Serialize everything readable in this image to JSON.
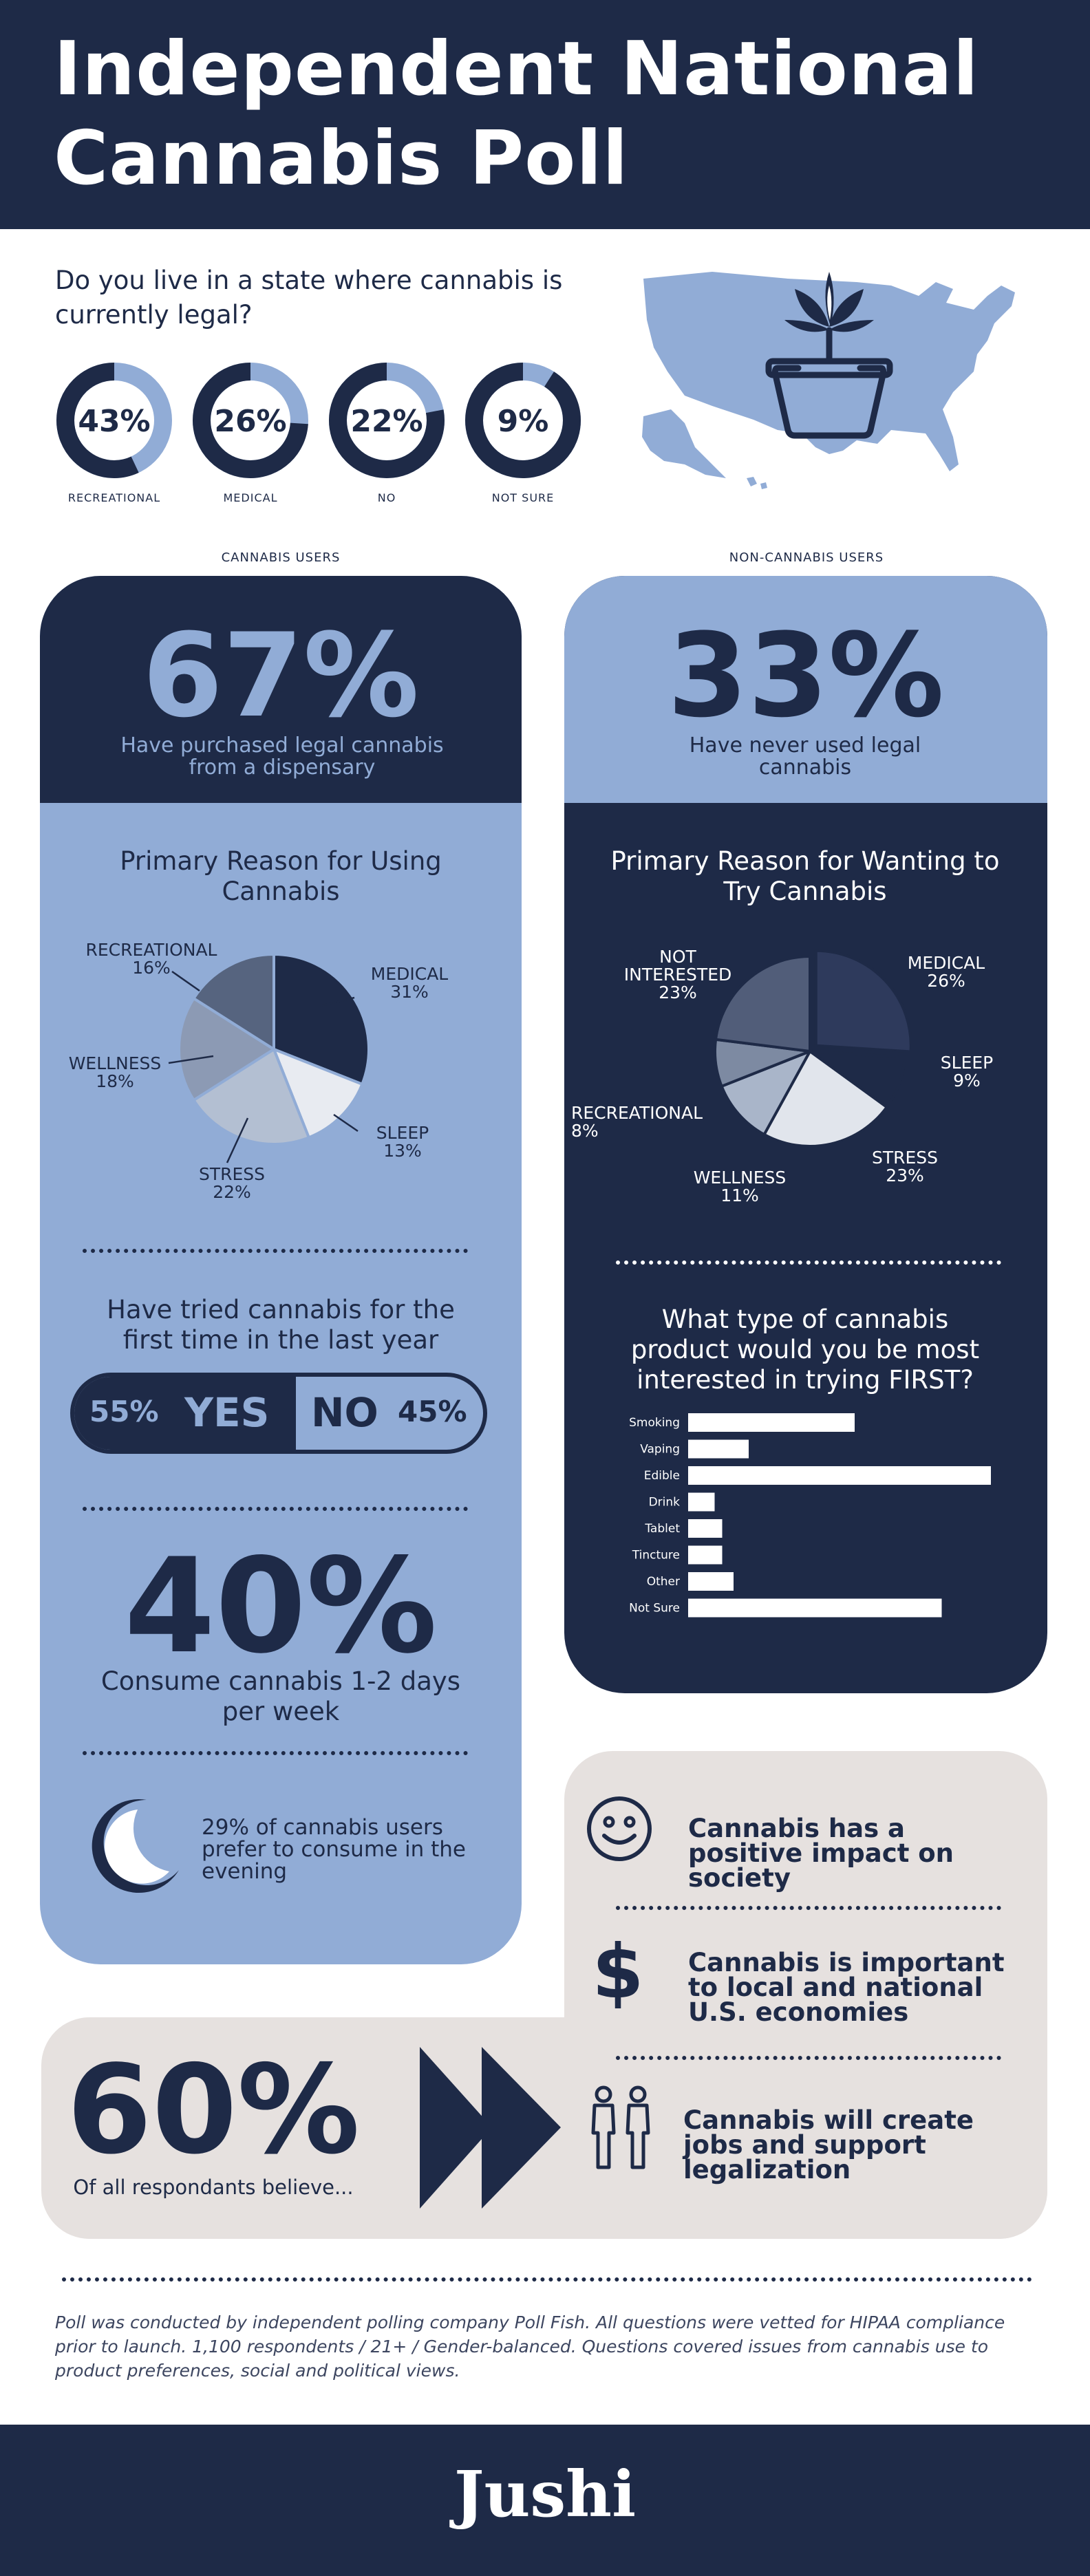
{
  "title": "Independent National Cannabis Poll",
  "question1": "Do you live in a state where cannabis is currently legal?",
  "legal_status": [
    {
      "pct": "43%",
      "label": "RECREATIONAL",
      "value": 43
    },
    {
      "pct": "26%",
      "label": "MEDICAL",
      "value": 26
    },
    {
      "pct": "22%",
      "label": "NO",
      "value": 22
    },
    {
      "pct": "9%",
      "label": "NOT SURE",
      "value": 9
    }
  ],
  "users": {
    "column_label": "CANNABIS USERS",
    "big_pct": "67%",
    "big_text": "Have purchased legal cannabis from a dispensary",
    "reason_title": "Primary Reason for Using Cannabis",
    "reasons": [
      {
        "name": "MEDICAL",
        "pct": "31%"
      },
      {
        "name": "SLEEP",
        "pct": "13%"
      },
      {
        "name": "STRESS",
        "pct": "22%"
      },
      {
        "name": "WELLNESS",
        "pct": "18%"
      },
      {
        "name": "RECREATIONAL",
        "pct": "16%"
      }
    ],
    "tried_title": "Have tried cannabis for the first time in the last year",
    "yes_pct": "55%",
    "yes_label": "YES",
    "no_label": "NO",
    "no_pct": "45%",
    "weekly_pct": "40%",
    "weekly_text": "Consume cannabis 1-2 days per week",
    "evening_text": "29% of cannabis users prefer to consume in the evening"
  },
  "non_users": {
    "column_label": "NON-CANNABIS USERS",
    "big_pct": "33%",
    "big_text": "Have never used legal cannabis",
    "reason_title": "Primary Reason for Wanting to Try Cannabis",
    "reasons": [
      {
        "name": "MEDICAL",
        "pct": "26%"
      },
      {
        "name": "SLEEP",
        "pct": "9%"
      },
      {
        "name": "STRESS",
        "pct": "23%"
      },
      {
        "name": "WELLNESS",
        "pct": "11%"
      },
      {
        "name": "RECREATIONAL",
        "pct": "8%"
      },
      {
        "name": "NOT INTERESTED",
        "pct": "23%"
      }
    ],
    "product_title": "What type of cannabis product would you be most interested in trying FIRST?"
  },
  "chart_data": [
    {
      "type": "pie",
      "title": "Primary Reason for Using Cannabis",
      "categories": [
        "MEDICAL",
        "SLEEP",
        "STRESS",
        "WELLNESS",
        "RECREATIONAL"
      ],
      "values": [
        31,
        13,
        22,
        18,
        16
      ],
      "colors": [
        "#1e2a47",
        "#e8ebf1",
        "#b3bfd2",
        "#8c9ab4",
        "#56647f"
      ]
    },
    {
      "type": "pie",
      "title": "Primary Reason for Wanting to Try Cannabis",
      "categories": [
        "MEDICAL",
        "SLEEP",
        "STRESS",
        "WELLNESS",
        "RECREATIONAL",
        "NOT INTERESTED"
      ],
      "values": [
        26,
        9,
        23,
        11,
        8,
        23
      ],
      "colors": [
        "#2e3a5c",
        "#1e2a47",
        "#e1e5ec",
        "#a9b5c9",
        "#7d8aa2",
        "#515d79"
      ]
    },
    {
      "type": "bar",
      "title": "What type of cannabis product would you be most interested in trying FIRST?",
      "categories": [
        "Smoking",
        "Vaping",
        "Edible",
        "Drink",
        "Tablet",
        "Tincture",
        "Other",
        "Not Sure"
      ],
      "values": [
        22,
        8,
        40,
        3.5,
        4.5,
        4.5,
        6,
        33.5
      ]
    }
  ],
  "beliefs": {
    "big_pct": "60%",
    "sub": "Of all respondants believe...",
    "items": [
      {
        "icon": "smiley-icon",
        "text": "Cannabis has a positive impact on society"
      },
      {
        "icon": "dollar-icon",
        "text": "Cannabis is important to local and national U.S. economies"
      },
      {
        "icon": "people-icon",
        "text": "Cannabis will create jobs and support legalization"
      }
    ]
  },
  "footnote": "Poll was conducted by independent polling company Poll Fish. All questions were vetted for HIPAA compliance prior to launch. 1,100 respondents / 21+ / Gender-balanced. Questions covered issues from cannabis use to product preferences, social and political views.",
  "brand": "Jushi",
  "colors": {
    "navy": "#1e2a47",
    "blue": "#91acd6",
    "grey": "#e6e1df",
    "white": "#ffffff"
  }
}
